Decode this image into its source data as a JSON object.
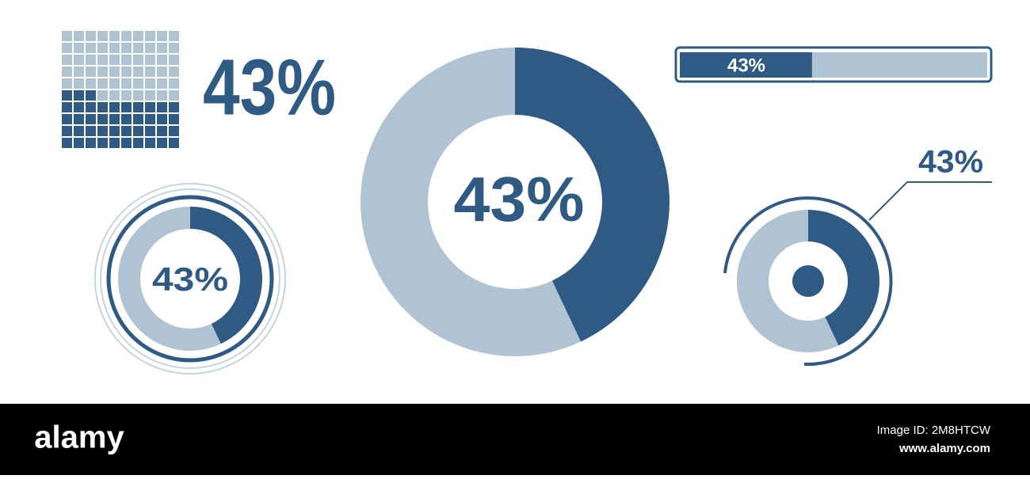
{
  "chart_data": [
    {
      "type": "waffle",
      "values": [
        43,
        57
      ],
      "value_labels": [
        "43%",
        null
      ],
      "colors": [
        "#2e5a84",
        "#b0c3d3"
      ]
    },
    {
      "type": "donut",
      "values": [
        43,
        57
      ],
      "value_labels": [
        "43%",
        null
      ],
      "colors": [
        "#2e5a84",
        "#b0c3d3"
      ]
    },
    {
      "type": "progress",
      "values": [
        43
      ],
      "value_labels": [
        "43%"
      ],
      "xlim": [
        0,
        100
      ],
      "colors": [
        "#2e5a84",
        "#b0c3d3"
      ]
    },
    {
      "type": "ring",
      "values": [
        43,
        57
      ],
      "value_labels": [
        "43%",
        null
      ],
      "colors": [
        "#2e5a84",
        "#b0c3d3"
      ]
    },
    {
      "type": "gauge",
      "values": [
        43,
        57
      ],
      "value_labels": [
        "43%",
        null
      ],
      "colors": [
        "#2e5a84",
        "#b0c3d3"
      ]
    }
  ],
  "watermark": {
    "logo": "alamy",
    "image_id": "Image ID: 2M8HTCW",
    "url": "www.alamy.com"
  }
}
